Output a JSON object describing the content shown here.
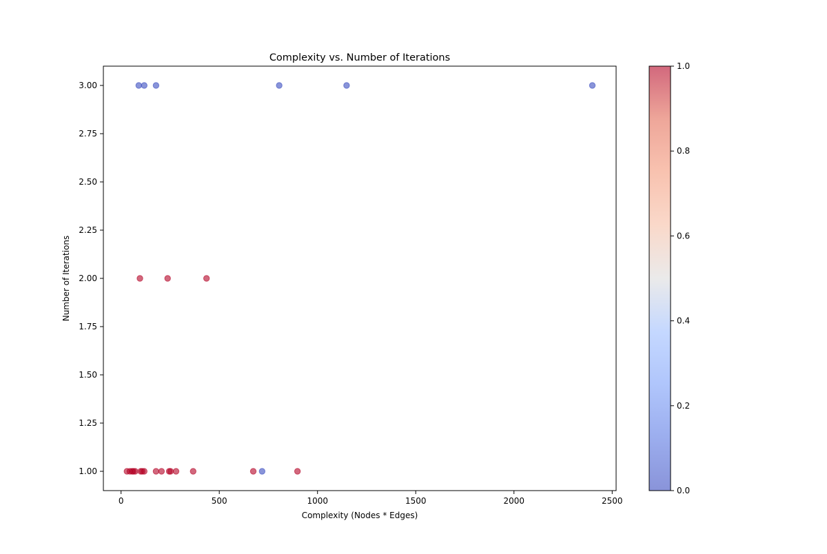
{
  "chart_data": {
    "type": "scatter",
    "title": "Complexity vs. Number of Iterations",
    "xlabel": "Complexity (Nodes * Edges)",
    "ylabel": "Number of Iterations",
    "xlim": [
      -90,
      2520
    ],
    "ylim": [
      0.9,
      3.1
    ],
    "x_ticks": [
      0,
      500,
      1000,
      1500,
      2000,
      2500
    ],
    "x_tick_labels": [
      "0",
      "500",
      "1000",
      "1500",
      "2000",
      "2500"
    ],
    "y_ticks": [
      1.0,
      1.25,
      1.5,
      1.75,
      2.0,
      2.25,
      2.5,
      2.75,
      3.0
    ],
    "y_tick_labels": [
      "1.00",
      "1.25",
      "1.50",
      "1.75",
      "2.00",
      "2.25",
      "2.50",
      "2.75",
      "3.00"
    ],
    "grid": false,
    "colormap": "coolwarm",
    "marker_alpha": 0.6,
    "colors": {
      "low": "#3b4cc0",
      "high": "#b40426"
    },
    "colorbar": {
      "range": [
        0.0,
        1.0
      ],
      "ticks": [
        0.0,
        0.2,
        0.4,
        0.6,
        0.8,
        1.0
      ],
      "tick_labels": [
        "0.0",
        "0.2",
        "0.4",
        "0.6",
        "0.8",
        "1.0"
      ]
    },
    "points": [
      {
        "x": 90,
        "y": 3,
        "c": 0
      },
      {
        "x": 118,
        "y": 3,
        "c": 0
      },
      {
        "x": 178,
        "y": 3,
        "c": 0
      },
      {
        "x": 805,
        "y": 3,
        "c": 0
      },
      {
        "x": 1148,
        "y": 3,
        "c": 0
      },
      {
        "x": 2399,
        "y": 3,
        "c": 0
      },
      {
        "x": 96,
        "y": 2,
        "c": 1
      },
      {
        "x": 237,
        "y": 2,
        "c": 1
      },
      {
        "x": 435,
        "y": 2,
        "c": 1
      },
      {
        "x": 30,
        "y": 1,
        "c": 1
      },
      {
        "x": 45,
        "y": 1,
        "c": 1
      },
      {
        "x": 56,
        "y": 1,
        "c": 1
      },
      {
        "x": 63,
        "y": 1,
        "c": 1
      },
      {
        "x": 72,
        "y": 1,
        "c": 1
      },
      {
        "x": 100,
        "y": 1,
        "c": 1
      },
      {
        "x": 108,
        "y": 1,
        "c": 1
      },
      {
        "x": 118,
        "y": 1,
        "c": 1
      },
      {
        "x": 178,
        "y": 1,
        "c": 1
      },
      {
        "x": 206,
        "y": 1,
        "c": 1
      },
      {
        "x": 245,
        "y": 1,
        "c": 1
      },
      {
        "x": 252,
        "y": 1,
        "c": 1
      },
      {
        "x": 280,
        "y": 1,
        "c": 1
      },
      {
        "x": 367,
        "y": 1,
        "c": 1
      },
      {
        "x": 673,
        "y": 1,
        "c": 1
      },
      {
        "x": 718,
        "y": 1,
        "c": 0
      },
      {
        "x": 898,
        "y": 1,
        "c": 1
      }
    ]
  }
}
